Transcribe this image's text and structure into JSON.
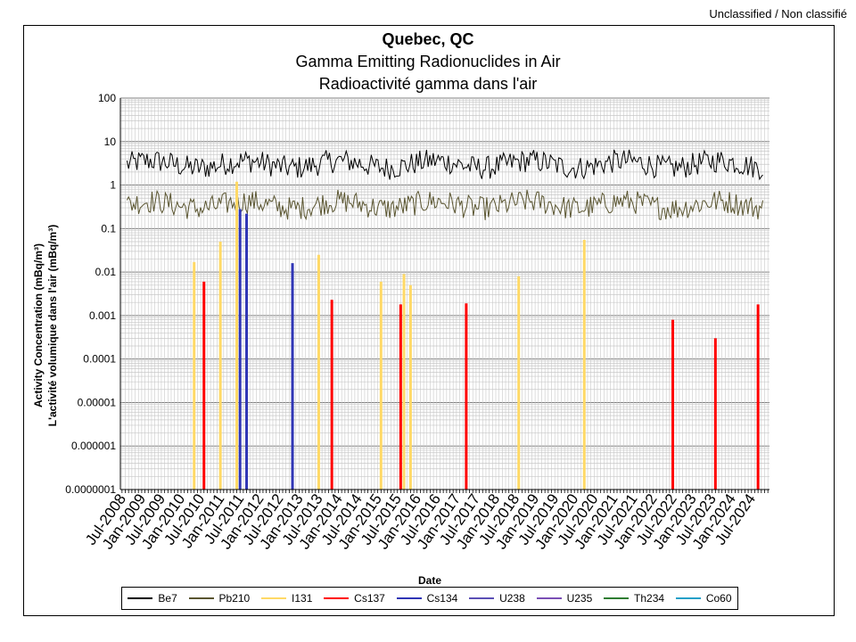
{
  "classification": "Unclassified / Non classifié",
  "chart_data": {
    "type": "line",
    "title": "Quebec, QC",
    "subtitle_en": "Gamma Emitting Radionuclides in Air",
    "subtitle_fr": "Radioactivité gamma dans l'air",
    "xlabel": "Date",
    "ylabel_en": "Activity Concentration  (mBq/m³)",
    "ylabel_fr": "L'activité volumique dans l'air (mBq/m³)",
    "yscale": "log",
    "ylim": [
      1e-07,
      100
    ],
    "xlim": [
      "2008-07",
      "2024-12"
    ],
    "grid": true,
    "legend_position": "bottom",
    "y_tick_labels": [
      "100",
      "10",
      "1",
      "0.1",
      "0.01",
      "0.001",
      "0.0001",
      "0.00001",
      "0.000001",
      "0.0000001"
    ],
    "x_tick_labels": [
      "Jul-2008",
      "Jan-2009",
      "Jul-2009",
      "Jan-2010",
      "Jul-2010",
      "Jan-2011",
      "Jul-2011",
      "Jan-2012",
      "Jul-2012",
      "Jan-2013",
      "Jul-2013",
      "Jan-2014",
      "Jul-2014",
      "Jan-2015",
      "Jul-2015",
      "Jan-2016",
      "Jul-2016",
      "Jan-2017",
      "Jul-2017",
      "Jan-2018",
      "Jul-2018",
      "Jan-2019",
      "Jul-2019",
      "Jan-2020",
      "Jul-2020",
      "Jan-2021",
      "Jul-2021",
      "Jan-2022",
      "Jul-2022",
      "Jan-2023",
      "Jul-2023",
      "Jan-2024",
      "Jul-2024"
    ],
    "series": [
      {
        "name": "Be7",
        "color": "#000000",
        "kind": "line",
        "typical_value": 3.0
      },
      {
        "name": "Pb210",
        "color": "#5a5530",
        "kind": "line",
        "typical_value": 0.35
      },
      {
        "name": "I131",
        "color": "#ffd966",
        "kind": "spikes",
        "points": [
          [
            "2010-05",
            0.017
          ],
          [
            "2011-01",
            0.05
          ],
          [
            "2011-06",
            1.2
          ],
          [
            "2013-07",
            0.025
          ],
          [
            "2015-02",
            0.006
          ],
          [
            "2015-09",
            0.009
          ],
          [
            "2015-11",
            0.005
          ],
          [
            "2018-08",
            0.008
          ],
          [
            "2020-04",
            0.055
          ]
        ]
      },
      {
        "name": "Cs137",
        "color": "#ff0000",
        "kind": "spikes",
        "points": [
          [
            "2010-08",
            0.006
          ],
          [
            "2013-11",
            0.0023
          ],
          [
            "2015-08",
            0.0018
          ],
          [
            "2017-04",
            0.0019
          ],
          [
            "2022-07",
            0.0008
          ],
          [
            "2023-08",
            0.0003
          ],
          [
            "2024-09",
            0.0018
          ]
        ]
      },
      {
        "name": "Cs134",
        "color": "#2f35b5",
        "kind": "spikes",
        "points": [
          [
            "2011-07",
            0.28
          ],
          [
            "2011-09",
            0.22
          ],
          [
            "2012-11",
            0.016
          ]
        ]
      },
      {
        "name": "U238",
        "color": "#5b4fb5",
        "kind": "spikes",
        "points": []
      },
      {
        "name": "U235",
        "color": "#7a4fb5",
        "kind": "spikes",
        "points": []
      },
      {
        "name": "Th234",
        "color": "#2e7d32",
        "kind": "spikes",
        "points": []
      },
      {
        "name": "Co60",
        "color": "#26a0c8",
        "kind": "spikes",
        "points": []
      }
    ]
  }
}
